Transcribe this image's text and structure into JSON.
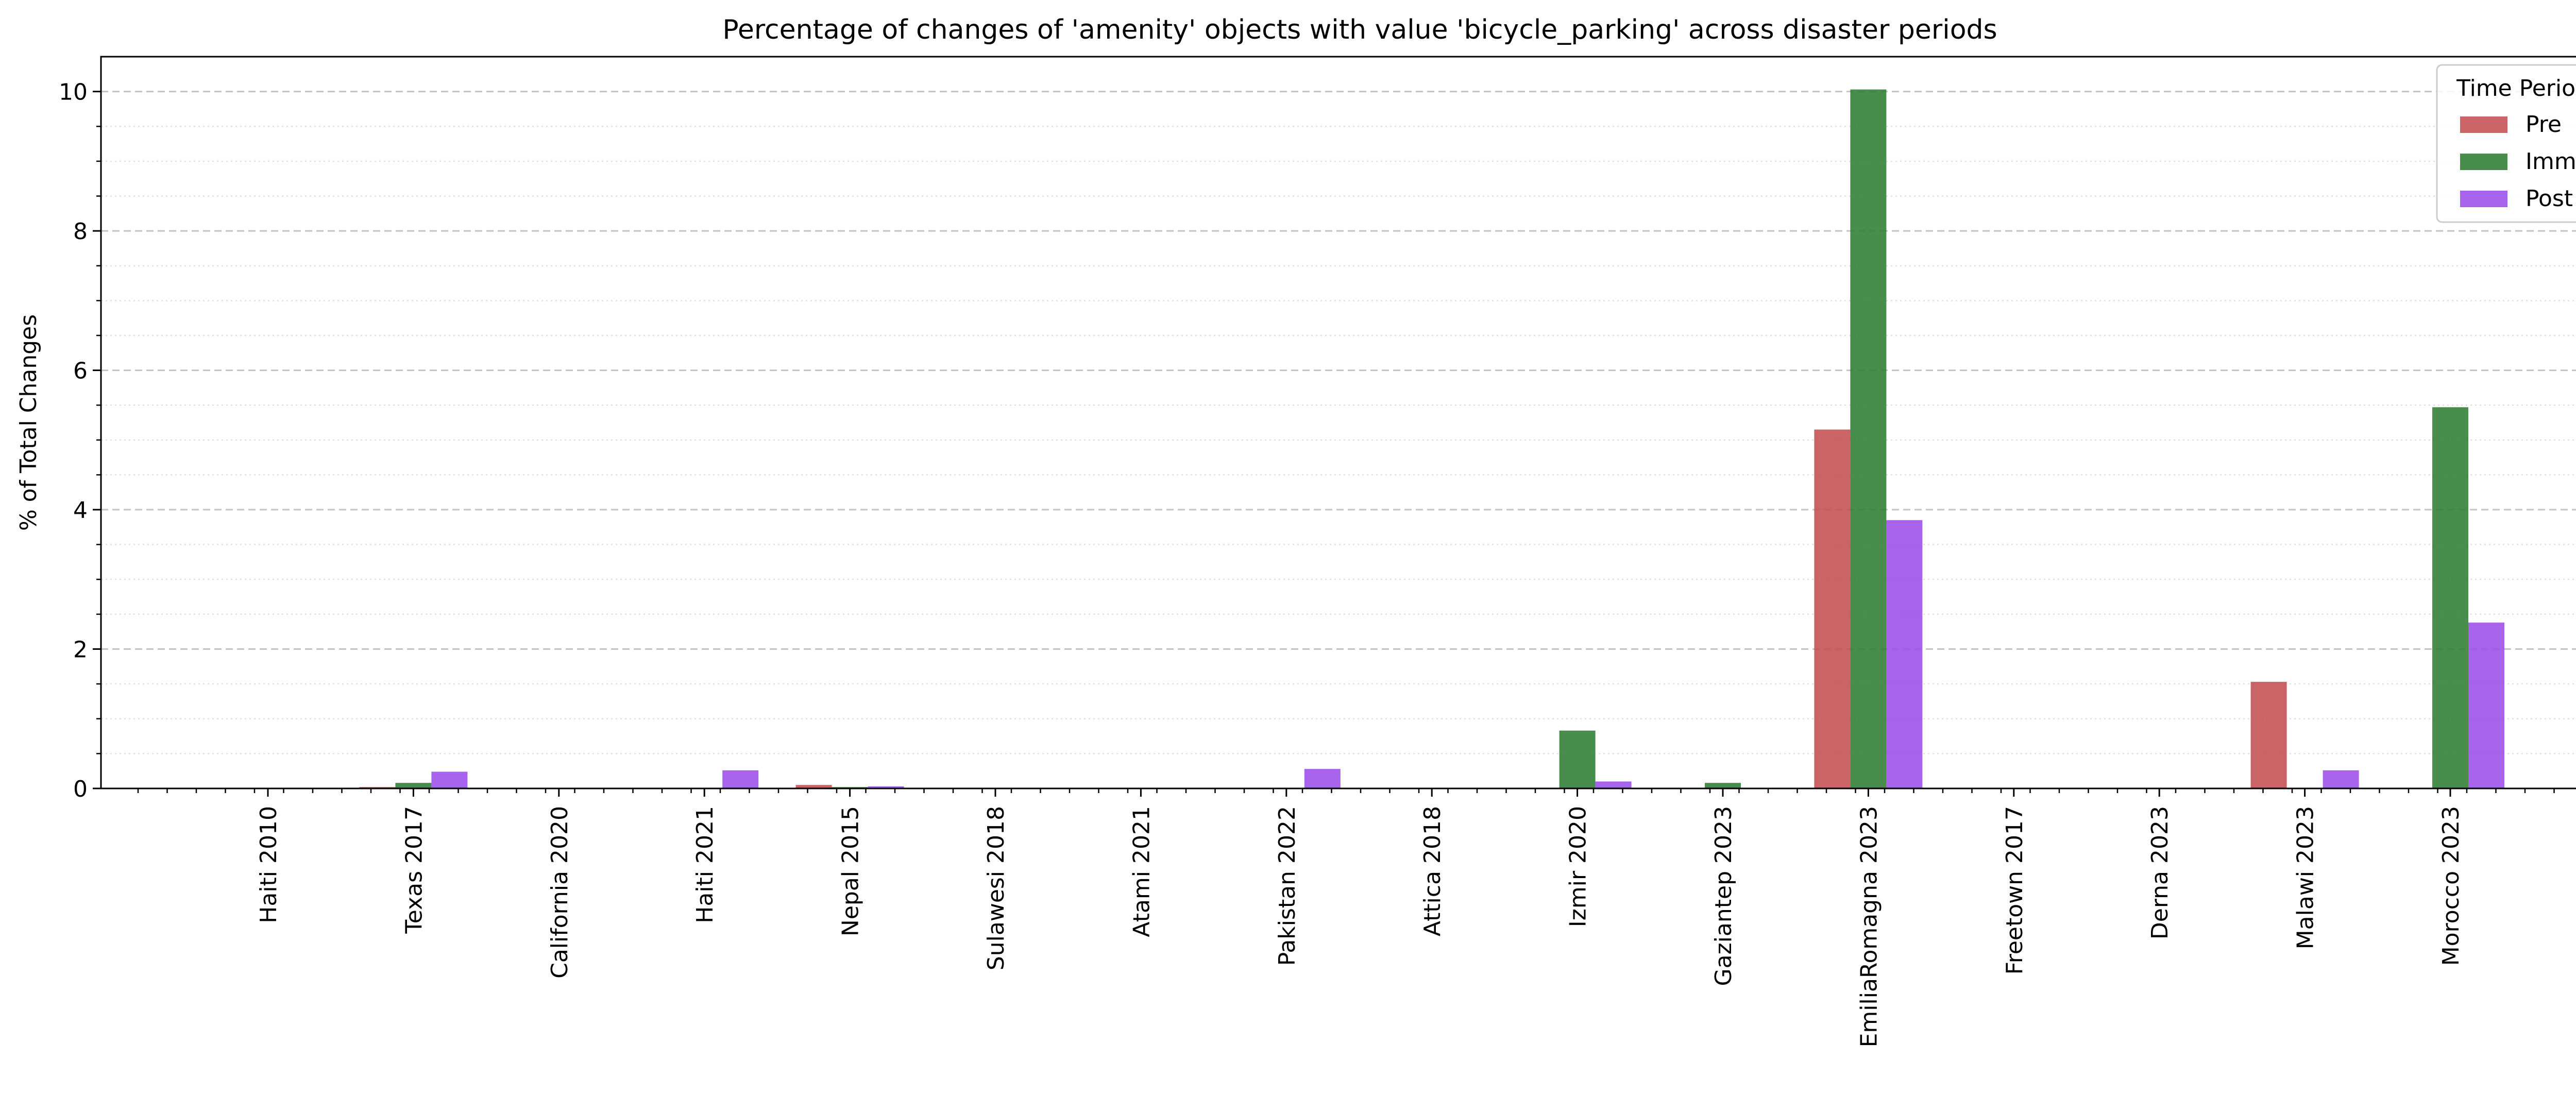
{
  "chart_data": {
    "type": "bar",
    "title": "Percentage of changes of 'amenity' objects with value 'bicycle_parking' across disaster periods",
    "xlabel": "",
    "ylabel": "% of Total Changes",
    "ylim": [
      0,
      10.5
    ],
    "yticks": [
      "0",
      "2",
      "4",
      "6",
      "8",
      "10"
    ],
    "grid": "horizontal dashed major, dotted minor",
    "legend": {
      "title": "Time Period",
      "placement": "top-right"
    },
    "categories": [
      "Haiti 2010",
      "Texas 2017",
      "California 2020",
      "Haiti 2021",
      "Nepal 2015",
      "Sulawesi 2018",
      "Atami 2021",
      "Pakistan 2022",
      "Attica 2018",
      "Izmir 2020",
      "Gaziantep 2023",
      "EmiliaRomagna 2023",
      "Freetown 2017",
      "Derna 2023",
      "Malawi 2023",
      "Morocco 2023"
    ],
    "series": [
      {
        "name": "Pre",
        "color": "#c44e52",
        "values": [
          0,
          0.02,
          0,
          0,
          0.05,
          0,
          0,
          0,
          0,
          0,
          0,
          5.15,
          0,
          0,
          1.53,
          0
        ]
      },
      {
        "name": "Imm",
        "color": "#2f7d32",
        "values": [
          0,
          0.08,
          0,
          0,
          0.02,
          0,
          0,
          0,
          0,
          0.83,
          0.08,
          10.03,
          0,
          0,
          0,
          5.47
        ]
      },
      {
        "name": "Post",
        "color": "#9b4de8",
        "values": [
          0,
          0.24,
          0,
          0.26,
          0.03,
          0,
          0,
          0.28,
          0,
          0.1,
          0,
          3.85,
          0,
          0,
          0.26,
          2.38
        ]
      }
    ]
  }
}
